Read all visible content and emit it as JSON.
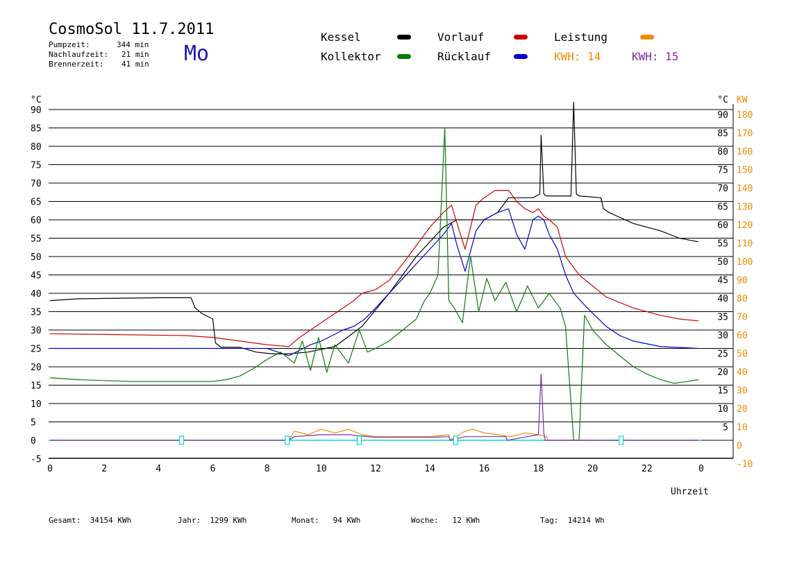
{
  "header": {
    "title": "CosmoSol 11.7.2011",
    "day": "Mo",
    "pumpzeit_label": "Pumpzeit:",
    "pumpzeit_value": "344 min",
    "nachlauf_label": "Nachlaufzeit:",
    "nachlauf_value": "21 min",
    "brenner_label": "Brennerzeit:",
    "brenner_value": "41 min"
  },
  "legend": {
    "kessel": "Kessel",
    "kollektor": "Kollektor",
    "vorlauf": "Vorlauf",
    "ruecklauf": "Rücklauf",
    "leistung": "Leistung",
    "kwh1": "KWH: 14",
    "kwh2": "KWH: 15"
  },
  "colors": {
    "kessel": "#000000",
    "kollektor": "#0a7a0a",
    "vorlauf": "#cc0000",
    "ruecklauf": "#0000cc",
    "leistung": "#f08a00",
    "kwh2": "#7a2aa8",
    "baseline": "#00d8d8"
  },
  "footer": {
    "gesamt": "Gesamt:  34154 KWh",
    "jahr": "Jahr:  1299 KWh",
    "monat": "Monat:   94 KWh",
    "woche": "Woche:   12 KWh",
    "tag": "Tag:  14214 Wh"
  },
  "chart_data": {
    "type": "line",
    "xlabel": "Uhrzeit",
    "ylabel_left": "°C",
    "ylabel_right_temp": "°C",
    "ylabel_right_power": "KW",
    "x_ticks": [
      "0",
      "2",
      "4",
      "6",
      "8",
      "10",
      "12",
      "14",
      "16",
      "18",
      "20",
      "22",
      "0"
    ],
    "y_ticks_left": [
      "-5",
      "0",
      "5",
      "10",
      "15",
      "20",
      "25",
      "30",
      "35",
      "40",
      "45",
      "50",
      "55",
      "60",
      "65",
      "70",
      "75",
      "80",
      "85",
      "90"
    ],
    "y_ticks_right_temp": [
      "5",
      "10",
      "15",
      "20",
      "25",
      "30",
      "35",
      "40",
      "45",
      "50",
      "55",
      "60",
      "65",
      "70",
      "75",
      "80",
      "85",
      "90"
    ],
    "y_ticks_right_power": [
      "-10",
      "0",
      "10",
      "20",
      "30",
      "40",
      "50",
      "60",
      "70",
      "80",
      "90",
      "100",
      "110",
      "120",
      "130",
      "140",
      "150",
      "160",
      "170",
      "180"
    ],
    "xlim": [
      0,
      24
    ],
    "ylim": [
      -5,
      95
    ],
    "series": [
      {
        "name": "Kessel",
        "color": "#000000",
        "x": [
          0,
          1,
          4,
          5.2,
          5.35,
          5.6,
          6.0,
          6.1,
          6.3,
          7.0,
          7.6,
          8.2,
          8.8,
          9.5,
          10.5,
          11.5,
          12.5,
          13.5,
          14.5,
          15.0,
          15.5,
          16.0,
          16.5,
          16.9,
          17.2,
          17.8,
          18.05,
          18.1,
          18.2,
          18.3,
          19.2,
          19.3,
          19.4,
          19.5,
          20.3,
          20.4,
          20.6,
          21.5,
          22.5,
          23.2,
          23.9
        ],
        "y": [
          38,
          38.5,
          38.8,
          38.8,
          36,
          34.5,
          33,
          26.5,
          25.3,
          25.3,
          24,
          23.5,
          23.5,
          24,
          25.5,
          31,
          40,
          50,
          58,
          60,
          60,
          60,
          62,
          66,
          66,
          66,
          67,
          83,
          67,
          66.5,
          66.5,
          92,
          67,
          66.5,
          66,
          63,
          62,
          59,
          57,
          55,
          54
        ]
      },
      {
        "name": "Vorlauf",
        "color": "#cc0000",
        "x": [
          0,
          2,
          5,
          6,
          7,
          8,
          8.8,
          9.2,
          9.6,
          10,
          10.4,
          10.8,
          11.2,
          11.5,
          12,
          12.5,
          13,
          13.5,
          14,
          14.5,
          14.8,
          15.0,
          15.3,
          15.7,
          16.0,
          16.4,
          16.9,
          17.2,
          17.5,
          17.8,
          18.0,
          18.2,
          18.4,
          18.7,
          19.0,
          19.5,
          20.5,
          21.5,
          22.5,
          23.2,
          23.9
        ],
        "y": [
          29,
          28.8,
          28.5,
          28,
          27,
          26,
          25.5,
          28,
          30,
          32,
          34,
          36,
          38,
          40,
          41,
          43.5,
          48,
          53,
          58,
          62,
          64,
          59,
          52,
          64,
          66,
          68,
          68,
          65,
          63,
          62,
          63,
          61,
          60,
          58,
          50,
          45,
          39,
          36,
          34,
          33,
          32.5
        ]
      },
      {
        "name": "Rücklauf",
        "color": "#0000cc",
        "x": [
          0,
          2,
          5,
          7,
          8,
          8.8,
          9.2,
          9.6,
          10,
          10.4,
          10.8,
          11.2,
          11.6,
          12,
          12.5,
          13,
          13.5,
          14,
          14.5,
          14.8,
          15.0,
          15.3,
          15.7,
          16.0,
          16.5,
          16.9,
          17.2,
          17.5,
          17.8,
          18.0,
          18.2,
          18.4,
          18.7,
          19.0,
          19.3,
          19.8,
          20.5,
          21.0,
          21.5,
          22.5,
          23.9
        ],
        "y": [
          25,
          25,
          25,
          25,
          25,
          23,
          24.5,
          26,
          27,
          28.5,
          30,
          31,
          33,
          36,
          40,
          44,
          48,
          52,
          56,
          59,
          53,
          46,
          57,
          60,
          62,
          63,
          56,
          52,
          60,
          61,
          60,
          56,
          52,
          45,
          40,
          36,
          31,
          28.5,
          27,
          25.5,
          25
        ]
      },
      {
        "name": "Kollektor",
        "color": "#0a7a0a",
        "x": [
          0,
          1,
          3,
          5,
          6,
          6.5,
          7,
          7.5,
          8,
          8.5,
          9,
          9.3,
          9.6,
          9.9,
          10.2,
          10.5,
          11,
          11.4,
          11.7,
          12,
          12.5,
          13,
          13.5,
          13.8,
          14,
          14.3,
          14.55,
          14.7,
          14.9,
          15.2,
          15.5,
          15.8,
          16.1,
          16.4,
          16.8,
          17.2,
          17.6,
          18.0,
          18.4,
          18.8,
          19.0,
          19.3,
          19.5,
          19.7,
          20.0,
          20.5,
          21.0,
          21.5,
          22.0,
          22.5,
          23.0,
          23.5,
          23.9
        ],
        "y": [
          17,
          16.5,
          16,
          16,
          16,
          16.5,
          17.5,
          19.5,
          22,
          24,
          21,
          27,
          19,
          28,
          18.5,
          26,
          21,
          30,
          24,
          25,
          27,
          30,
          33,
          38,
          40,
          45,
          85,
          38,
          36,
          32,
          50,
          35,
          44,
          38,
          43,
          35,
          42,
          36,
          40,
          36,
          31,
          0,
          0,
          34,
          30,
          26,
          23,
          20,
          18,
          16.5,
          15.5,
          16,
          16.5
        ]
      },
      {
        "name": "Leistung",
        "color": "#f08a00",
        "x": [
          0,
          8.8,
          9.0,
          9.5,
          10.0,
          10.5,
          11.0,
          11.5,
          12.0,
          13.0,
          14.0,
          14.7,
          14.75,
          15.3,
          15.6,
          16.0,
          16.5,
          17.0,
          17.5,
          18.0,
          18.3,
          18.35,
          23.9
        ],
        "y": [
          0,
          0,
          2.5,
          1.5,
          3,
          2,
          3,
          1.5,
          1,
          1,
          1,
          1.5,
          0,
          2.5,
          3,
          2,
          1.5,
          1,
          2,
          1.5,
          1,
          0,
          0
        ]
      },
      {
        "name": "KWH: 15",
        "color": "#7a2aa8",
        "x": [
          0,
          8.8,
          9.0,
          10.0,
          11.0,
          12.0,
          14.0,
          14.7,
          14.75,
          15.3,
          16.0,
          16.8,
          16.85,
          17.6,
          18.0,
          18.1,
          18.2,
          18.25,
          23.9
        ],
        "y": [
          0,
          0,
          1,
          1.5,
          1.5,
          0.8,
          0.8,
          1,
          0,
          1,
          1,
          1,
          0,
          1,
          1.5,
          18,
          2,
          0,
          0
        ]
      }
    ]
  }
}
